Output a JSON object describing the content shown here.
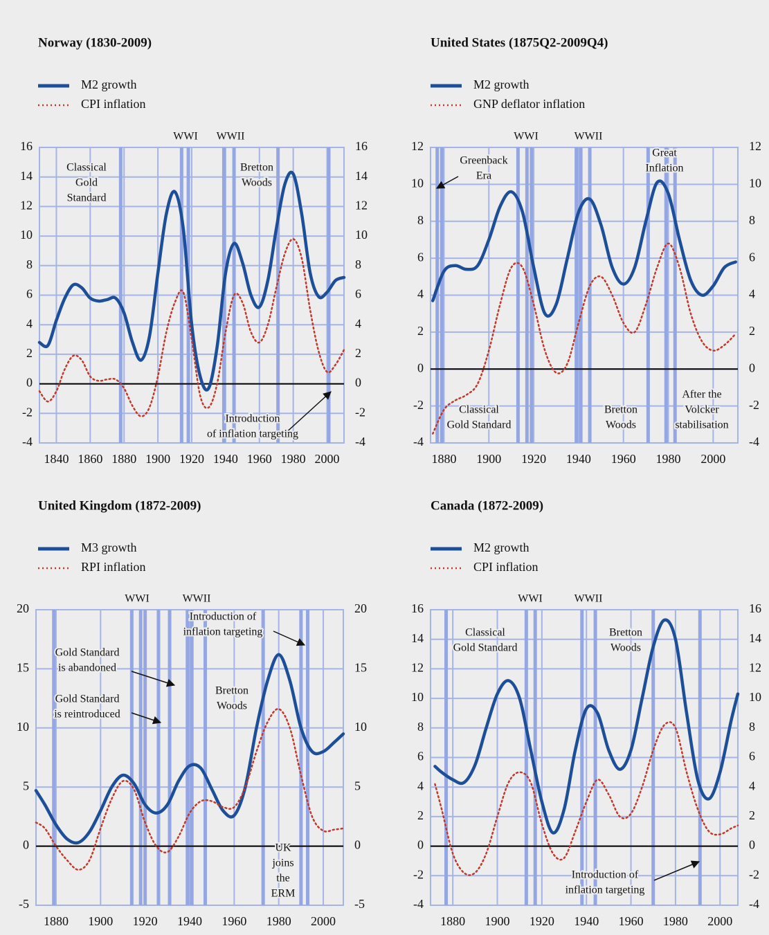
{
  "chart_data": [
    {
      "type": "line",
      "title": "Norway (1830-2009)",
      "x": [
        1830,
        1835,
        1840,
        1845,
        1850,
        1855,
        1860,
        1865,
        1870,
        1875,
        1880,
        1885,
        1890,
        1895,
        1900,
        1905,
        1910,
        1915,
        1920,
        1925,
        1930,
        1935,
        1940,
        1945,
        1950,
        1955,
        1960,
        1965,
        1970,
        1975,
        1980,
        1985,
        1990,
        1995,
        2000,
        2005,
        2010
      ],
      "series": [
        {
          "name": "M2 growth",
          "color": "#1d4f99",
          "values": [
            2.8,
            2.6,
            4.3,
            5.8,
            6.7,
            6.5,
            5.8,
            5.6,
            5.7,
            5.8,
            4.8,
            2.8,
            1.6,
            3.2,
            7.5,
            11.5,
            13.0,
            10.5,
            4.0,
            0.5,
            -0.3,
            2.5,
            7.5,
            9.5,
            8.2,
            6.0,
            5.2,
            7.0,
            10.5,
            13.5,
            14.2,
            11.5,
            7.5,
            5.9,
            6.2,
            7.0,
            7.2
          ]
        },
        {
          "name": "CPI inflation",
          "color": "#c0392b",
          "values": [
            -0.5,
            -1.2,
            -0.5,
            1.0,
            1.9,
            1.6,
            0.5,
            0.2,
            0.3,
            0.3,
            -0.3,
            -1.5,
            -2.2,
            -1.6,
            0.5,
            3.5,
            5.5,
            6.2,
            3.0,
            -0.8,
            -1.6,
            0.0,
            3.5,
            6.0,
            5.5,
            3.5,
            2.8,
            4.0,
            6.5,
            8.8,
            9.8,
            8.5,
            5.0,
            2.2,
            0.8,
            1.3,
            2.3
          ]
        }
      ],
      "xlim": [
        1830,
        2010
      ],
      "xticks": [
        1840,
        1860,
        1880,
        1900,
        1920,
        1940,
        1960,
        1980,
        2000
      ],
      "ylim": [
        -4,
        16
      ],
      "yticks": [
        -4,
        -2,
        0,
        2,
        4,
        6,
        8,
        10,
        12,
        14,
        16
      ],
      "y2lim": [
        -4,
        16
      ],
      "y2ticks": [
        -4,
        -2,
        0,
        2,
        4,
        6,
        8,
        10,
        12,
        14,
        16
      ],
      "grid": true,
      "vlines": [
        1878,
        1914,
        1918,
        1939,
        1945,
        1971,
        2001
      ],
      "annotations": [
        [
          "WWI"
        ],
        [
          "WWII"
        ],
        [
          "Classical",
          "Gold",
          "Standard"
        ],
        [
          "Bretton",
          "Woods"
        ],
        [
          "Introduction",
          "of inflation targeting"
        ]
      ]
    },
    {
      "type": "line",
      "title": "United States (1875Q2-2009Q4)",
      "x": [
        1875,
        1880,
        1885,
        1890,
        1895,
        1900,
        1905,
        1910,
        1915,
        1920,
        1925,
        1930,
        1935,
        1940,
        1945,
        1950,
        1955,
        1960,
        1965,
        1970,
        1975,
        1980,
        1985,
        1990,
        1995,
        2000,
        2005,
        2010
      ],
      "series": [
        {
          "name": "M2 growth",
          "color": "#1d4f99",
          "values": [
            3.7,
            5.3,
            5.6,
            5.4,
            5.6,
            7.0,
            8.8,
            9.6,
            8.5,
            5.5,
            3.0,
            3.5,
            6.0,
            8.5,
            9.2,
            7.8,
            5.5,
            4.6,
            5.5,
            8.0,
            10.1,
            9.5,
            7.0,
            4.8,
            4.0,
            4.5,
            5.5,
            5.8
          ]
        },
        {
          "name": "GNP deflator inflation",
          "color": "#c0392b",
          "values": [
            -3.5,
            -2.2,
            -1.7,
            -1.4,
            -0.8,
            1.0,
            3.5,
            5.5,
            5.5,
            3.5,
            1.0,
            -0.2,
            0.3,
            2.5,
            4.5,
            5.0,
            4.0,
            2.5,
            2.0,
            3.5,
            5.5,
            6.8,
            5.5,
            3.0,
            1.5,
            1.0,
            1.3,
            1.9
          ]
        }
      ],
      "xlim": [
        1874,
        2011
      ],
      "xticks": [
        1880,
        1900,
        1920,
        1940,
        1960,
        1980,
        2000
      ],
      "ylim": [
        -4,
        12
      ],
      "yticks": [
        -4,
        -2,
        0,
        2,
        4,
        6,
        8,
        10,
        12
      ],
      "y2lim": [
        -4,
        12
      ],
      "y2ticks": [
        -4,
        -2,
        0,
        2,
        4,
        6,
        8,
        10,
        12
      ],
      "grid": true,
      "vlines": [
        1877,
        1879,
        1913,
        1917,
        1919,
        1939,
        1941,
        1945,
        1971,
        1979,
        1983
      ],
      "annotations": [
        [
          "WWI"
        ],
        [
          "WWII"
        ],
        [
          "Greenback",
          "Era"
        ],
        [
          "Great",
          "Inflation"
        ],
        [
          "Classical",
          "Gold Standard"
        ],
        [
          "Bretton",
          "Woods"
        ],
        [
          "After the",
          "Volcker",
          "stabilisation"
        ]
      ]
    },
    {
      "type": "line",
      "title": "United Kingdom (1872-2009)",
      "x": [
        1871,
        1875,
        1880,
        1885,
        1890,
        1895,
        1900,
        1905,
        1910,
        1915,
        1920,
        1925,
        1930,
        1935,
        1940,
        1945,
        1950,
        1955,
        1960,
        1965,
        1970,
        1975,
        1980,
        1985,
        1990,
        1995,
        2000,
        2005,
        2009
      ],
      "series": [
        {
          "name": "M3 growth",
          "color": "#1d4f99",
          "values": [
            4.7,
            3.5,
            1.8,
            0.6,
            0.3,
            1.2,
            3.0,
            5.0,
            6.0,
            5.3,
            3.5,
            2.8,
            3.5,
            5.5,
            6.8,
            6.6,
            4.8,
            3.0,
            2.6,
            5.0,
            10.0,
            14.0,
            16.2,
            14.0,
            10.0,
            8.0,
            8.0,
            8.8,
            9.5
          ]
        },
        {
          "name": "RPI inflation",
          "color": "#c0392b",
          "values": [
            2.0,
            1.5,
            0.0,
            -1.2,
            -2.0,
            -1.2,
            1.5,
            4.0,
            5.5,
            4.8,
            2.0,
            0.0,
            -0.5,
            0.8,
            2.8,
            3.8,
            3.8,
            3.3,
            3.3,
            5.0,
            8.0,
            10.5,
            11.6,
            10.0,
            6.0,
            2.5,
            1.3,
            1.4,
            1.5
          ]
        }
      ],
      "xlim": [
        1871,
        2009
      ],
      "xticks": [
        1880,
        1900,
        1920,
        1940,
        1960,
        1980,
        2000
      ],
      "ylim": [
        -5,
        20
      ],
      "yticks": [
        -5,
        0,
        5,
        10,
        15,
        20
      ],
      "y2lim": [
        -5,
        20
      ],
      "y2ticks": [
        -5,
        0,
        5,
        10,
        15,
        20
      ],
      "grid": true,
      "vlines": [
        1879,
        1914,
        1918,
        1920,
        1926,
        1931,
        1939,
        1941,
        1947,
        1973,
        1990,
        1993
      ],
      "annotations": [
        [
          "WWI"
        ],
        [
          "WWII"
        ],
        [
          "Introduction of",
          "inflation targeting"
        ],
        [
          "Gold Standard",
          "is abandoned"
        ],
        [
          "Gold Standard",
          "is reintroduced"
        ],
        [
          "Bretton",
          "Woods"
        ],
        [
          "UK",
          "joins",
          "the",
          "ERM"
        ]
      ]
    },
    {
      "type": "line",
      "title": "Canada (1872-2009)",
      "x": [
        1872,
        1875,
        1880,
        1885,
        1890,
        1895,
        1900,
        1905,
        1910,
        1915,
        1920,
        1925,
        1930,
        1935,
        1940,
        1945,
        1950,
        1955,
        1960,
        1965,
        1970,
        1975,
        1980,
        1985,
        1990,
        1995,
        2000,
        2005,
        2008
      ],
      "series": [
        {
          "name": "M2 growth",
          "color": "#1d4f99",
          "values": [
            5.4,
            5.0,
            4.5,
            4.3,
            5.5,
            8.0,
            10.3,
            11.2,
            10.0,
            6.5,
            3.0,
            0.9,
            2.5,
            6.5,
            9.3,
            9.0,
            6.5,
            5.2,
            6.5,
            10.0,
            13.5,
            15.3,
            14.0,
            9.0,
            4.5,
            3.2,
            5.0,
            8.5,
            10.3
          ]
        },
        {
          "name": "CPI inflation",
          "color": "#c0392b",
          "values": [
            4.2,
            2.5,
            -0.5,
            -1.8,
            -1.8,
            -0.5,
            2.0,
            4.3,
            5.0,
            4.3,
            1.5,
            -0.5,
            -0.8,
            1.0,
            3.0,
            4.5,
            3.5,
            2.0,
            2.2,
            4.0,
            6.5,
            8.2,
            8.0,
            5.0,
            2.5,
            1.0,
            0.8,
            1.2,
            1.4
          ]
        }
      ],
      "xlim": [
        1870,
        2008
      ],
      "xticks": [
        1880,
        1900,
        1920,
        1940,
        1960,
        1980,
        2000
      ],
      "ylim": [
        -4,
        16
      ],
      "yticks": [
        -4,
        -2,
        0,
        2,
        4,
        6,
        8,
        10,
        12,
        14,
        16
      ],
      "y2lim": [
        -4,
        16
      ],
      "y2ticks": [
        -4,
        -2,
        0,
        2,
        4,
        6,
        8,
        10,
        12,
        14,
        16
      ],
      "grid": true,
      "vlines": [
        1877,
        1913,
        1917,
        1938,
        1944,
        1970,
        1991
      ],
      "annotations": [
        [
          "WWI"
        ],
        [
          "WWII"
        ],
        [
          "Classical",
          "Gold Standard"
        ],
        [
          "Bretton",
          "Woods"
        ],
        [
          "Introduction of",
          "inflation targeting"
        ]
      ]
    }
  ]
}
